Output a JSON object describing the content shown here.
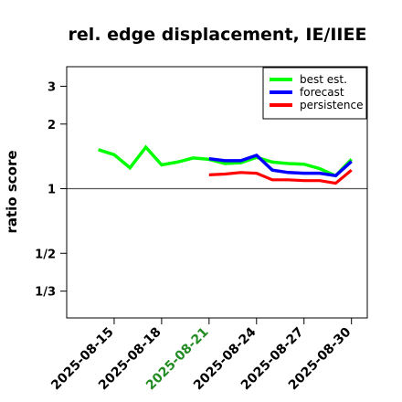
{
  "chart_data": {
    "type": "line",
    "title": "rel. edge displacement, IE/IIEE",
    "ylabel": "ratio score",
    "xlabel": "",
    "y_scale": "log",
    "ylim": [
      0.25,
      3.7
    ],
    "y_ticks": [
      {
        "value": 0.3333,
        "label": "1/3"
      },
      {
        "value": 0.5,
        "label": "1/2"
      },
      {
        "value": 1,
        "label": "1"
      },
      {
        "value": 2,
        "label": "2"
      },
      {
        "value": 3,
        "label": "3"
      }
    ],
    "x_ticks": [
      {
        "date": "2025-08-15",
        "highlight": false
      },
      {
        "date": "2025-08-18",
        "highlight": false
      },
      {
        "date": "2025-08-21",
        "highlight": true
      },
      {
        "date": "2025-08-24",
        "highlight": false
      },
      {
        "date": "2025-08-27",
        "highlight": false
      },
      {
        "date": "2025-08-30",
        "highlight": false
      }
    ],
    "xlim": [
      "2025-08-12",
      "2025-08-31"
    ],
    "reference_line": 1,
    "highlight_color": "#228B22",
    "legend": {
      "placement": "top-right"
    },
    "series": [
      {
        "name": "best est.",
        "color": "#00ff00",
        "points": [
          [
            "2025-08-14",
            1.52
          ],
          [
            "2025-08-15",
            1.44
          ],
          [
            "2025-08-16",
            1.25
          ],
          [
            "2025-08-17",
            1.56
          ],
          [
            "2025-08-18",
            1.29
          ],
          [
            "2025-08-19",
            1.33
          ],
          [
            "2025-08-20",
            1.39
          ],
          [
            "2025-08-21",
            1.37
          ],
          [
            "2025-08-22",
            1.31
          ],
          [
            "2025-08-23",
            1.32
          ],
          [
            "2025-08-24",
            1.4
          ],
          [
            "2025-08-25",
            1.33
          ],
          [
            "2025-08-26",
            1.31
          ],
          [
            "2025-08-27",
            1.3
          ],
          [
            "2025-08-28",
            1.24
          ],
          [
            "2025-08-29",
            1.15
          ],
          [
            "2025-08-30",
            1.37
          ]
        ]
      },
      {
        "name": "forecast",
        "color": "#0000ff",
        "points": [
          [
            "2025-08-21",
            1.38
          ],
          [
            "2025-08-22",
            1.35
          ],
          [
            "2025-08-23",
            1.35
          ],
          [
            "2025-08-24",
            1.43
          ],
          [
            "2025-08-25",
            1.22
          ],
          [
            "2025-08-26",
            1.19
          ],
          [
            "2025-08-27",
            1.18
          ],
          [
            "2025-08-28",
            1.18
          ],
          [
            "2025-08-29",
            1.15
          ],
          [
            "2025-08-30",
            1.34
          ]
        ]
      },
      {
        "name": "persistence",
        "color": "#ff0000",
        "points": [
          [
            "2025-08-21",
            1.16
          ],
          [
            "2025-08-22",
            1.17
          ],
          [
            "2025-08-23",
            1.19
          ],
          [
            "2025-08-24",
            1.18
          ],
          [
            "2025-08-25",
            1.1
          ],
          [
            "2025-08-26",
            1.1
          ],
          [
            "2025-08-27",
            1.09
          ],
          [
            "2025-08-28",
            1.09
          ],
          [
            "2025-08-29",
            1.06
          ],
          [
            "2025-08-30",
            1.22
          ]
        ]
      }
    ]
  }
}
